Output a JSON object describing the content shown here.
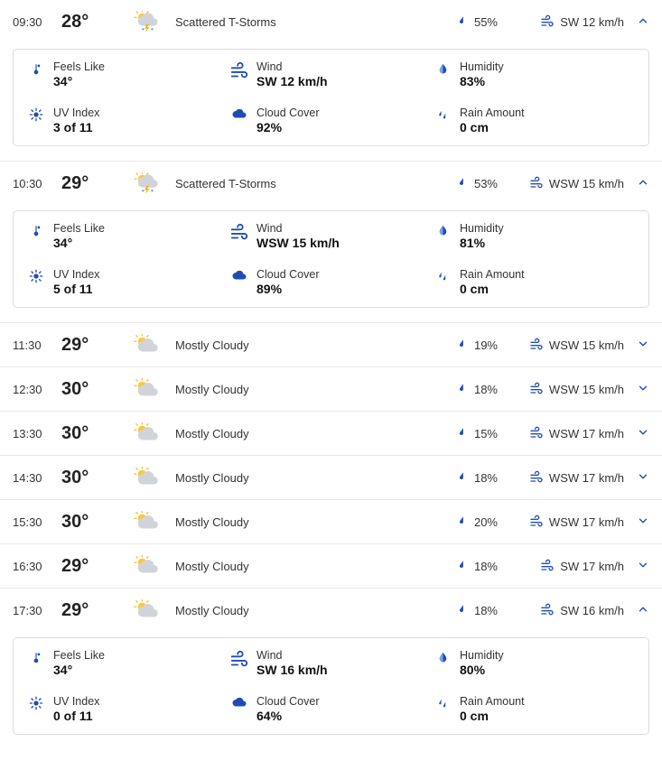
{
  "colors": {
    "accent": "#1f4db3",
    "iconBlue": "#1f4db3",
    "text": "#222222",
    "border": "#dcdcdc",
    "rowDivider": "#e8e8e8"
  },
  "labels": {
    "feelsLike": "Feels Like",
    "wind": "Wind",
    "humidity": "Humidity",
    "uvIndex": "UV Index",
    "cloudCover": "Cloud Cover",
    "rainAmount": "Rain Amount"
  },
  "hours": [
    {
      "time": "09:30",
      "temp": "28°",
      "condition": "Scattered T-Storms",
      "conditionIcon": "tstorm",
      "precip": "55%",
      "windText": "SW 12 km/h",
      "expanded": true,
      "details": {
        "feelsLike": "34°",
        "wind": "SW 12 km/h",
        "humidity": "83%",
        "uv": "3 of 11",
        "cloud": "92%",
        "rain": "0 cm"
      }
    },
    {
      "time": "10:30",
      "temp": "29°",
      "condition": "Scattered T-Storms",
      "conditionIcon": "tstorm",
      "precip": "53%",
      "windText": "WSW 15 km/h",
      "expanded": true,
      "details": {
        "feelsLike": "34°",
        "wind": "WSW 15 km/h",
        "humidity": "81%",
        "uv": "5 of 11",
        "cloud": "89%",
        "rain": "0 cm"
      }
    },
    {
      "time": "11:30",
      "temp": "29°",
      "condition": "Mostly Cloudy",
      "conditionIcon": "mcloudy",
      "precip": "19%",
      "windText": "WSW 15 km/h",
      "expanded": false
    },
    {
      "time": "12:30",
      "temp": "30°",
      "condition": "Mostly Cloudy",
      "conditionIcon": "mcloudy",
      "precip": "18%",
      "windText": "WSW 15 km/h",
      "expanded": false
    },
    {
      "time": "13:30",
      "temp": "30°",
      "condition": "Mostly Cloudy",
      "conditionIcon": "mcloudy",
      "precip": "15%",
      "windText": "WSW 17 km/h",
      "expanded": false
    },
    {
      "time": "14:30",
      "temp": "30°",
      "condition": "Mostly Cloudy",
      "conditionIcon": "mcloudy",
      "precip": "18%",
      "windText": "WSW 17 km/h",
      "expanded": false
    },
    {
      "time": "15:30",
      "temp": "30°",
      "condition": "Mostly Cloudy",
      "conditionIcon": "mcloudy",
      "precip": "20%",
      "windText": "WSW 17 km/h",
      "expanded": false
    },
    {
      "time": "16:30",
      "temp": "29°",
      "condition": "Mostly Cloudy",
      "conditionIcon": "mcloudy",
      "precip": "18%",
      "windText": "SW 17 km/h",
      "expanded": false
    },
    {
      "time": "17:30",
      "temp": "29°",
      "condition": "Mostly Cloudy",
      "conditionIcon": "mcloudy",
      "precip": "18%",
      "windText": "SW 16 km/h",
      "expanded": true,
      "details": {
        "feelsLike": "34°",
        "wind": "SW 16 km/h",
        "humidity": "80%",
        "uv": "0 of 11",
        "cloud": "64%",
        "rain": "0 cm"
      }
    }
  ]
}
